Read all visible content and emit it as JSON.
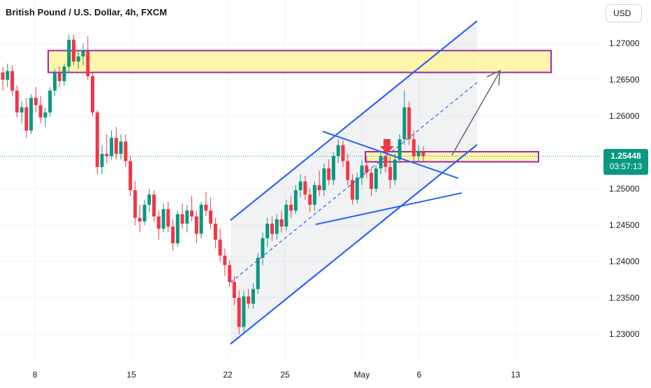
{
  "header": {
    "title": "British Pound / U.S. Dollar, 4h, FXCM"
  },
  "price_axis": {
    "currency_button": "USD",
    "last_price": "1.25448",
    "countdown": "03:57:13"
  },
  "chart_data": {
    "type": "candlestick",
    "symbol": "British Pound / U.S. Dollar",
    "interval": "4h",
    "source": "FXCM",
    "y_ticks": [
      "1.27000",
      "1.26500",
      "1.26000",
      "1.25500",
      "1.25000",
      "1.24500",
      "1.24000",
      "1.23500",
      "1.23000"
    ],
    "x_ticks": [
      "8",
      "15",
      "22",
      "25",
      "May",
      "6",
      "13"
    ],
    "ylim": [
      1.2275,
      1.2735
    ],
    "last_price": 1.25448,
    "colors": {
      "up": "#089981",
      "down": "#f23645",
      "trend": "#2962ff",
      "zone_fill": "#fff59d",
      "zone_border": "#9c27b0"
    },
    "candles": [
      [
        1.266,
        1.2668,
        1.2635,
        1.265
      ],
      [
        1.265,
        1.2672,
        1.264,
        1.2662
      ],
      [
        1.2662,
        1.267,
        1.2628,
        1.2635
      ],
      [
        1.2635,
        1.2642,
        1.2598,
        1.2605
      ],
      [
        1.2605,
        1.262,
        1.259,
        1.2612
      ],
      [
        1.2612,
        1.2625,
        1.257,
        1.258
      ],
      [
        1.258,
        1.263,
        1.2575,
        1.2625
      ],
      [
        1.2625,
        1.264,
        1.2605,
        1.2615
      ],
      [
        1.2615,
        1.2628,
        1.259,
        1.2598
      ],
      [
        1.2598,
        1.2612,
        1.2585,
        1.2605
      ],
      [
        1.2605,
        1.264,
        1.26,
        1.2635
      ],
      [
        1.2635,
        1.2665,
        1.2628,
        1.266
      ],
      [
        1.266,
        1.2668,
        1.264,
        1.2648
      ],
      [
        1.2648,
        1.2672,
        1.2642,
        1.2668
      ],
      [
        1.2668,
        1.2712,
        1.266,
        1.2705
      ],
      [
        1.2705,
        1.2712,
        1.267,
        1.2675
      ],
      [
        1.2675,
        1.269,
        1.2665,
        1.2682
      ],
      [
        1.2682,
        1.27,
        1.267,
        1.269
      ],
      [
        1.269,
        1.271,
        1.265,
        1.2655
      ],
      [
        1.2655,
        1.266,
        1.26,
        1.2605
      ],
      [
        1.2605,
        1.2608,
        1.252,
        1.253
      ],
      [
        1.253,
        1.256,
        1.252,
        1.2548
      ],
      [
        1.2548,
        1.2575,
        1.2535,
        1.2545
      ],
      [
        1.2545,
        1.258,
        1.254,
        1.257
      ],
      [
        1.257,
        1.2585,
        1.254,
        1.2548
      ],
      [
        1.2548,
        1.2575,
        1.254,
        1.2565
      ],
      [
        1.2565,
        1.2575,
        1.253,
        1.2538
      ],
      [
        1.2538,
        1.2545,
        1.249,
        1.2498
      ],
      [
        1.2498,
        1.251,
        1.245,
        1.246
      ],
      [
        1.246,
        1.2478,
        1.244,
        1.2455
      ],
      [
        1.2455,
        1.2485,
        1.245,
        1.2478
      ],
      [
        1.2478,
        1.25,
        1.2468,
        1.2492
      ],
      [
        1.2492,
        1.2498,
        1.2455,
        1.2462
      ],
      [
        1.2462,
        1.247,
        1.243,
        1.2445
      ],
      [
        1.2445,
        1.248,
        1.244,
        1.2472
      ],
      [
        1.2472,
        1.2482,
        1.244,
        1.2448
      ],
      [
        1.2448,
        1.2458,
        1.2415,
        1.2425
      ],
      [
        1.2425,
        1.247,
        1.242,
        1.2465
      ],
      [
        1.2465,
        1.248,
        1.2445,
        1.2452
      ],
      [
        1.2452,
        1.2478,
        1.244,
        1.247
      ],
      [
        1.247,
        1.249,
        1.2455,
        1.2462
      ],
      [
        1.2462,
        1.247,
        1.2425,
        1.2438
      ],
      [
        1.2438,
        1.2482,
        1.2432,
        1.2478
      ],
      [
        1.2478,
        1.2495,
        1.2462,
        1.247
      ],
      [
        1.247,
        1.2488,
        1.2445,
        1.2452
      ],
      [
        1.2452,
        1.246,
        1.2418,
        1.243
      ],
      [
        1.243,
        1.2445,
        1.24,
        1.2408
      ],
      [
        1.2408,
        1.2418,
        1.238,
        1.2395
      ],
      [
        1.2395,
        1.2402,
        1.2365,
        1.2372
      ],
      [
        1.2372,
        1.238,
        1.234,
        1.235
      ],
      [
        1.235,
        1.236,
        1.23,
        1.231
      ],
      [
        1.231,
        1.236,
        1.2302,
        1.2352
      ],
      [
        1.2352,
        1.2362,
        1.2335,
        1.2342
      ],
      [
        1.2342,
        1.237,
        1.2335,
        1.2362
      ],
      [
        1.2362,
        1.2412,
        1.2355,
        1.2405
      ],
      [
        1.2405,
        1.244,
        1.2395,
        1.2432
      ],
      [
        1.2432,
        1.246,
        1.242,
        1.2452
      ],
      [
        1.2452,
        1.2462,
        1.2428,
        1.2438
      ],
      [
        1.2438,
        1.2465,
        1.243,
        1.2458
      ],
      [
        1.2458,
        1.247,
        1.244,
        1.2448
      ],
      [
        1.2448,
        1.2485,
        1.2442,
        1.2478
      ],
      [
        1.2478,
        1.249,
        1.246,
        1.247
      ],
      [
        1.247,
        1.2505,
        1.2465,
        1.2498
      ],
      [
        1.2498,
        1.252,
        1.2488,
        1.251
      ],
      [
        1.251,
        1.2518,
        1.2485,
        1.2492
      ],
      [
        1.2492,
        1.25,
        1.2468,
        1.2478
      ],
      [
        1.2478,
        1.251,
        1.247,
        1.2505
      ],
      [
        1.2505,
        1.2525,
        1.249,
        1.2498
      ],
      [
        1.2498,
        1.2535,
        1.249,
        1.2528
      ],
      [
        1.2528,
        1.254,
        1.2505,
        1.2512
      ],
      [
        1.2512,
        1.255,
        1.2505,
        1.2545
      ],
      [
        1.2545,
        1.2568,
        1.2535,
        1.256
      ],
      [
        1.256,
        1.2566,
        1.253,
        1.2538
      ],
      [
        1.2538,
        1.2548,
        1.2505,
        1.2512
      ],
      [
        1.2512,
        1.252,
        1.2478,
        1.2485
      ],
      [
        1.2485,
        1.2522,
        1.248,
        1.2515
      ],
      [
        1.2515,
        1.254,
        1.2505,
        1.2532
      ],
      [
        1.2532,
        1.2545,
        1.2515,
        1.2522
      ],
      [
        1.2522,
        1.253,
        1.249,
        1.25
      ],
      [
        1.25,
        1.2532,
        1.2495,
        1.2528
      ],
      [
        1.2528,
        1.255,
        1.252,
        1.2545
      ],
      [
        1.2545,
        1.2555,
        1.2522,
        1.253
      ],
      [
        1.253,
        1.2545,
        1.25,
        1.2512
      ],
      [
        1.2512,
        1.2548,
        1.2505,
        1.254
      ],
      [
        1.254,
        1.2575,
        1.2535,
        1.2568
      ],
      [
        1.2568,
        1.2635,
        1.256,
        1.2612
      ],
      [
        1.2612,
        1.262,
        1.256,
        1.2568
      ],
      [
        1.2568,
        1.258,
        1.2535,
        1.2545
      ],
      [
        1.2545,
        1.256,
        1.2538,
        1.2552
      ],
      [
        1.2552,
        1.2558,
        1.2538,
        1.2545
      ]
    ],
    "horizontal_zones": [
      {
        "label": "resistance zone",
        "from": 1.266,
        "to": 1.269
      },
      {
        "label": "support zone",
        "from": 1.2539,
        "to": 1.2549
      }
    ],
    "annotations": [
      "ascending channel",
      "symmetrical triangle",
      "down arrow at breakout",
      "projection arrow to upper zone"
    ]
  }
}
